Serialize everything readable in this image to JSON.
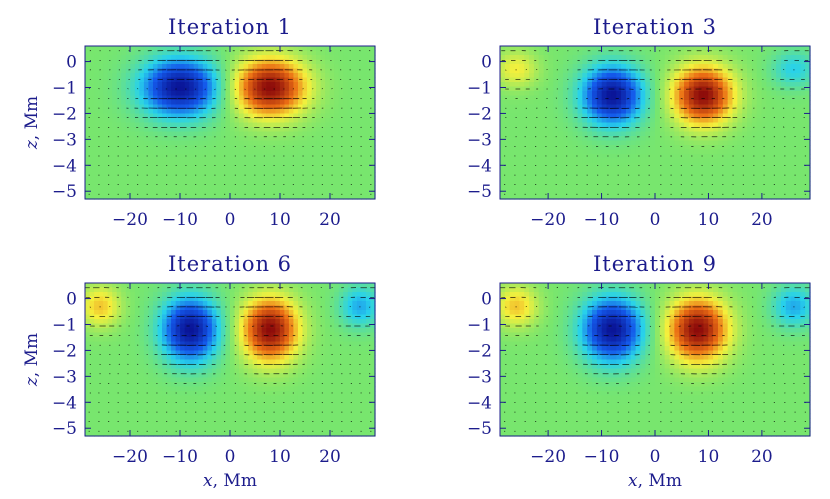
{
  "figure": {
    "ylabel_italic": "z",
    "ylabel_rest": ", Mm",
    "xlabel_italic": "x",
    "xlabel_rest": ", Mm",
    "text_color": "#1c1c8c"
  },
  "chart_data": [
    {
      "type": "heatmap",
      "title": "Iteration 1",
      "xlabel": "",
      "ylabel": "z, Mm",
      "xlim": [
        -29,
        29
      ],
      "ylim": [
        -5.3,
        0.6
      ],
      "xticks": [
        -20,
        -10,
        0,
        10,
        20
      ],
      "xtick_labels": [
        "−20",
        "−10",
        "0",
        "10",
        "20"
      ],
      "yticks": [
        0,
        -1,
        -2,
        -3,
        -4,
        -5
      ],
      "ytick_labels": [
        "0",
        "−1",
        "−2",
        "−3",
        "−4",
        "−5"
      ],
      "colormap": "rainbow (blue negative, green zero, red positive)",
      "features": [
        {
          "sign": -1,
          "x": -10,
          "z": -1.0,
          "sx": 7.5,
          "sz": 1.1,
          "amp": 1.0
        },
        {
          "sign": 1,
          "x": 8,
          "z": -1.0,
          "sx": 7.0,
          "sz": 1.1,
          "amp": 1.0
        }
      ],
      "arrows": "velocity vectors overlaid, dense near surface"
    },
    {
      "type": "heatmap",
      "title": "Iteration 3",
      "xlabel": "",
      "ylabel": "",
      "xlim": [
        -29,
        29
      ],
      "ylim": [
        -5.3,
        0.6
      ],
      "xticks": [
        -20,
        -10,
        0,
        10,
        20
      ],
      "xtick_labels": [
        "−20",
        "−10",
        "0",
        "10",
        "20"
      ],
      "yticks": [
        0,
        -1,
        -2,
        -3,
        -4,
        -5
      ],
      "ytick_labels": [
        "0",
        "−1",
        "−2",
        "−3",
        "−4",
        "−5"
      ],
      "colormap": "rainbow (blue negative, green zero, red positive)",
      "features": [
        {
          "sign": -1,
          "x": -8,
          "z": -1.3,
          "sx": 5.5,
          "sz": 1.1,
          "amp": 1.0
        },
        {
          "sign": 1,
          "x": 9,
          "z": -1.3,
          "sx": 5.5,
          "sz": 1.1,
          "amp": 1.0
        },
        {
          "sign": 1,
          "x": -26,
          "z": -0.3,
          "sx": 4,
          "sz": 0.7,
          "amp": 0.3
        },
        {
          "sign": -1,
          "x": 26,
          "z": -0.3,
          "sx": 4,
          "sz": 0.7,
          "amp": 0.3
        }
      ],
      "arrows": "velocity vectors overlaid"
    },
    {
      "type": "heatmap",
      "title": "Iteration 6",
      "xlabel": "x, Mm",
      "ylabel": "z, Mm",
      "xlim": [
        -29,
        29
      ],
      "ylim": [
        -5.3,
        0.6
      ],
      "xticks": [
        -20,
        -10,
        0,
        10,
        20
      ],
      "xtick_labels": [
        "−20",
        "−10",
        "0",
        "10",
        "20"
      ],
      "yticks": [
        0,
        -1,
        -2,
        -3,
        -4,
        -5
      ],
      "ytick_labels": [
        "0",
        "−1",
        "−2",
        "−3",
        "−4",
        "−5"
      ],
      "colormap": "rainbow (blue negative, green zero, red positive)",
      "features": [
        {
          "sign": -1,
          "x": -8,
          "z": -1.2,
          "sx": 5.5,
          "sz": 1.2,
          "amp": 1.0
        },
        {
          "sign": 1,
          "x": 8,
          "z": -1.2,
          "sx": 5.5,
          "sz": 1.2,
          "amp": 1.0
        },
        {
          "sign": 1,
          "x": -26,
          "z": -0.3,
          "sx": 4,
          "sz": 0.8,
          "amp": 0.4
        },
        {
          "sign": -1,
          "x": 26,
          "z": -0.3,
          "sx": 4,
          "sz": 0.8,
          "amp": 0.4
        }
      ],
      "arrows": "velocity vectors overlaid"
    },
    {
      "type": "heatmap",
      "title": "Iteration 9",
      "xlabel": "x, Mm",
      "ylabel": "",
      "xlim": [
        -29,
        29
      ],
      "ylim": [
        -5.3,
        0.6
      ],
      "xticks": [
        -20,
        -10,
        0,
        10,
        20
      ],
      "xtick_labels": [
        "−20",
        "−10",
        "0",
        "10",
        "20"
      ],
      "yticks": [
        0,
        -1,
        -2,
        -3,
        -4,
        -5
      ],
      "ytick_labels": [
        "0",
        "−1",
        "−2",
        "−3",
        "−4",
        "−5"
      ],
      "colormap": "rainbow (blue negative, green zero, red positive)",
      "features": [
        {
          "sign": -1,
          "x": -8,
          "z": -1.2,
          "sx": 5.5,
          "sz": 1.2,
          "amp": 1.0
        },
        {
          "sign": 1,
          "x": 8,
          "z": -1.2,
          "sx": 5.5,
          "sz": 1.2,
          "amp": 1.0
        },
        {
          "sign": 1,
          "x": -26,
          "z": -0.3,
          "sx": 4,
          "sz": 0.8,
          "amp": 0.4
        },
        {
          "sign": -1,
          "x": 26,
          "z": -0.3,
          "sx": 4,
          "sz": 0.8,
          "amp": 0.4
        }
      ],
      "arrows": "velocity vectors overlaid"
    }
  ]
}
